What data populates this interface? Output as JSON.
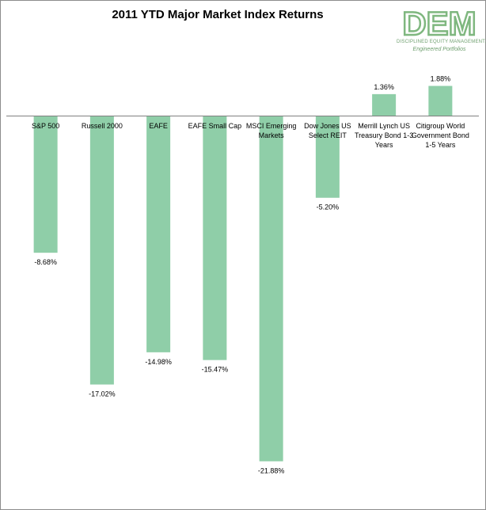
{
  "chart_data": {
    "type": "bar",
    "title": "2011 YTD Major Market Index Returns",
    "categories": [
      [
        "S&P 500"
      ],
      [
        "Russell 2000"
      ],
      [
        "EAFE"
      ],
      [
        "EAFE Small Cap"
      ],
      [
        "MSCI Emerging",
        "Markets"
      ],
      [
        "Dow Jones US",
        "Select REIT"
      ],
      [
        "Merrill Lynch US",
        "Treasury Bond 1-3",
        "Years"
      ],
      [
        "Citigroup World",
        "Government Bond",
        "1-5 Years"
      ]
    ],
    "values": [
      -8.68,
      -17.02,
      -14.98,
      -15.47,
      -21.88,
      -5.2,
      1.36,
      1.88
    ],
    "value_labels": [
      "-8.68%",
      "-17.02%",
      "-14.98%",
      "-15.47%",
      "-21.88%",
      "-5.20%",
      "1.36%",
      "1.88%"
    ],
    "xlabel": "",
    "ylabel": "",
    "ylim": [
      -22.9,
      2.7
    ],
    "grid": false,
    "legend": "none",
    "bar_color": "#8fcea8"
  },
  "logo": {
    "mark": "DEM",
    "line1": "DISCIPLINED EQUITY MANAGEMENT, INC.",
    "line2": "Engineered Portfolios",
    "color": "#7fb77f"
  }
}
